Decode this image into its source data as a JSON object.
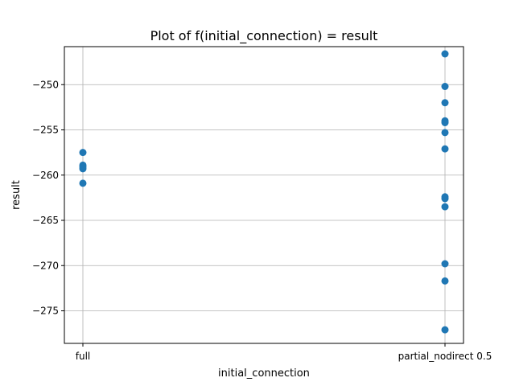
{
  "chart_data": {
    "type": "scatter",
    "title": "Plot of f(initial_connection) = result",
    "xlabel": "initial_connection",
    "ylabel": "result",
    "categories": [
      "full",
      "partial_nodirect 0.5"
    ],
    "ylim": [
      -278.6,
      -245.8
    ],
    "yticks": [
      -250,
      -255,
      -260,
      -265,
      -270,
      -275
    ],
    "grid": true,
    "color": "#1f77b4",
    "points": [
      {
        "x": "full",
        "y": -257.5
      },
      {
        "x": "full",
        "y": -258.9
      },
      {
        "x": "full",
        "y": -259.1
      },
      {
        "x": "full",
        "y": -259.3
      },
      {
        "x": "full",
        "y": -260.9
      },
      {
        "x": "partial_nodirect 0.5",
        "y": -246.6
      },
      {
        "x": "partial_nodirect 0.5",
        "y": -250.2
      },
      {
        "x": "partial_nodirect 0.5",
        "y": -252.0
      },
      {
        "x": "partial_nodirect 0.5",
        "y": -254.0
      },
      {
        "x": "partial_nodirect 0.5",
        "y": -254.2
      },
      {
        "x": "partial_nodirect 0.5",
        "y": -255.3
      },
      {
        "x": "partial_nodirect 0.5",
        "y": -257.1
      },
      {
        "x": "partial_nodirect 0.5",
        "y": -262.4
      },
      {
        "x": "partial_nodirect 0.5",
        "y": -262.6
      },
      {
        "x": "partial_nodirect 0.5",
        "y": -263.5
      },
      {
        "x": "partial_nodirect 0.5",
        "y": -269.8
      },
      {
        "x": "partial_nodirect 0.5",
        "y": -271.7
      },
      {
        "x": "partial_nodirect 0.5",
        "y": -277.1
      }
    ]
  }
}
